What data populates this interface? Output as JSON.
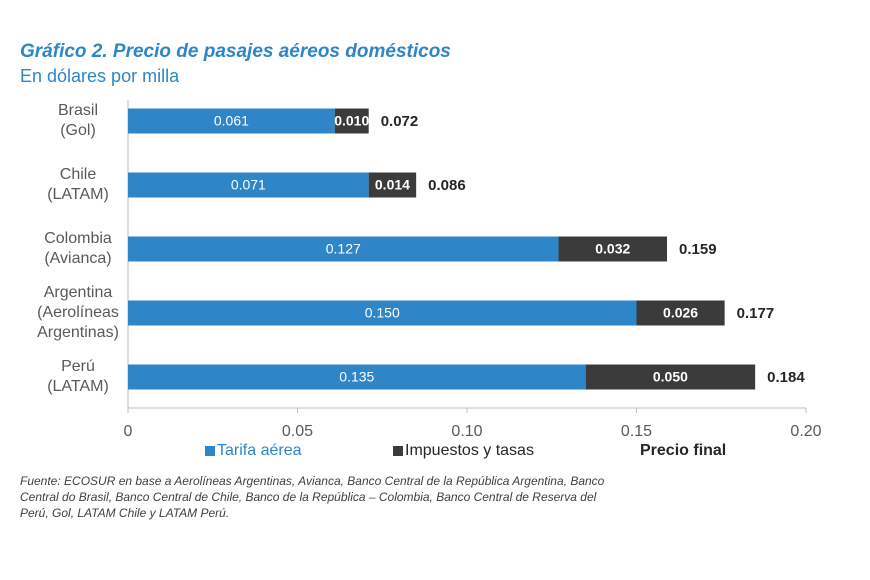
{
  "chart_data": {
    "type": "stacked-barh",
    "title": "Gráfico 2. Precio de pasajes aéreos domésticos",
    "subtitle": "En dólares por milla",
    "categories": [
      [
        "Brasil",
        "(Gol)"
      ],
      [
        "Chile",
        "(LATAM)"
      ],
      [
        "Colombia",
        "(Avianca)"
      ],
      [
        "Argentina",
        "(Aerolíneas",
        "Argentinas)"
      ],
      [
        "Perú",
        "(LATAM)"
      ]
    ],
    "series": [
      {
        "name": "Tarifa aérea",
        "color": "#2e86c8",
        "values": [
          0.061,
          0.071,
          0.127,
          0.15,
          0.135
        ],
        "value_labels": [
          "0.061",
          "0.071",
          "0.127",
          "0.150",
          "0.135"
        ]
      },
      {
        "name": "Impuestos y tasas",
        "color": "#3b3b3b",
        "values": [
          0.01,
          0.014,
          0.032,
          0.026,
          0.05
        ],
        "value_labels": [
          "0.010",
          "0.014",
          "0.032",
          "0.026",
          "0.050"
        ]
      }
    ],
    "totals": {
      "name": "Precio final",
      "values": [
        0.072,
        0.086,
        0.159,
        0.177,
        0.184
      ]
    },
    "xlim": [
      0,
      0.2
    ],
    "xticks": [
      0,
      0.05,
      {
        "value": 0.1,
        "label": "0.10"
      },
      0.15,
      {
        "value": 0.2,
        "label": "0.20"
      }
    ],
    "source": [
      "Fuente: ECOSUR en base a Aerolíneas Argentinas, Avianca, Banco Central de la República Argentina, Banco",
      "Central do Brasil, Banco Central de Chile, Banco de la República – Colombia, Banco Central de Reserva del",
      "Perú, Gol, LATAM Chile y LATAM Perú."
    ]
  }
}
